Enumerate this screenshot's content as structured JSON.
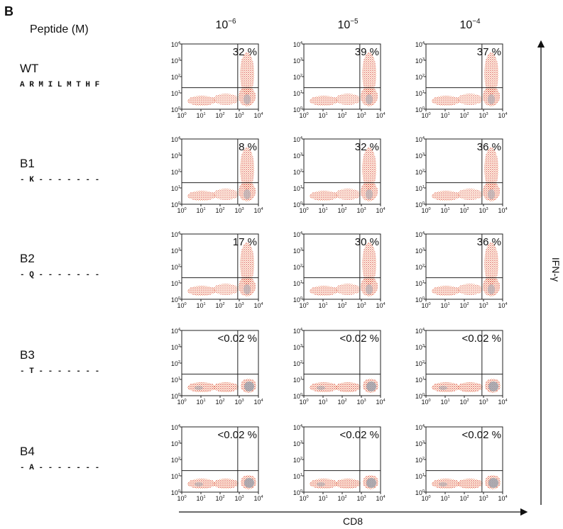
{
  "panel_label": "B",
  "row_header": "Peptide (M)",
  "columns": [
    {
      "base": "10",
      "exponent": "−6"
    },
    {
      "base": "10",
      "exponent": "−5"
    },
    {
      "base": "10",
      "exponent": "−4"
    }
  ],
  "rows": [
    {
      "name": "WT",
      "sequence": "A R M I L M T H F",
      "percentages": [
        "32 %",
        "39 %",
        "37 %"
      ]
    },
    {
      "name": "B1",
      "sequence": "- K - - - - - - -",
      "percentages": [
        "8 %",
        "32 %",
        "36 %"
      ]
    },
    {
      "name": "B2",
      "sequence": "- Q - - - - - - -",
      "percentages": [
        "17 %",
        "30 %",
        "36 %"
      ]
    },
    {
      "name": "B3",
      "sequence": "- T - - - - - - -",
      "percentages": [
        "<0.02 %",
        "<0.02 %",
        "<0.02 %"
      ]
    },
    {
      "name": "B4",
      "sequence": "- A - - - - - - -",
      "percentages": [
        "<0.02 %",
        "<0.02 %",
        "<0.02 %"
      ]
    }
  ],
  "axis_ticks": [
    {
      "base": "10",
      "exponent": "0"
    },
    {
      "base": "10",
      "exponent": "1"
    },
    {
      "base": "10",
      "exponent": "2"
    },
    {
      "base": "10",
      "exponent": "3"
    },
    {
      "base": "10",
      "exponent": "4"
    }
  ],
  "y_axis_label": "IFN-γ",
  "x_axis_label": "CD8"
}
